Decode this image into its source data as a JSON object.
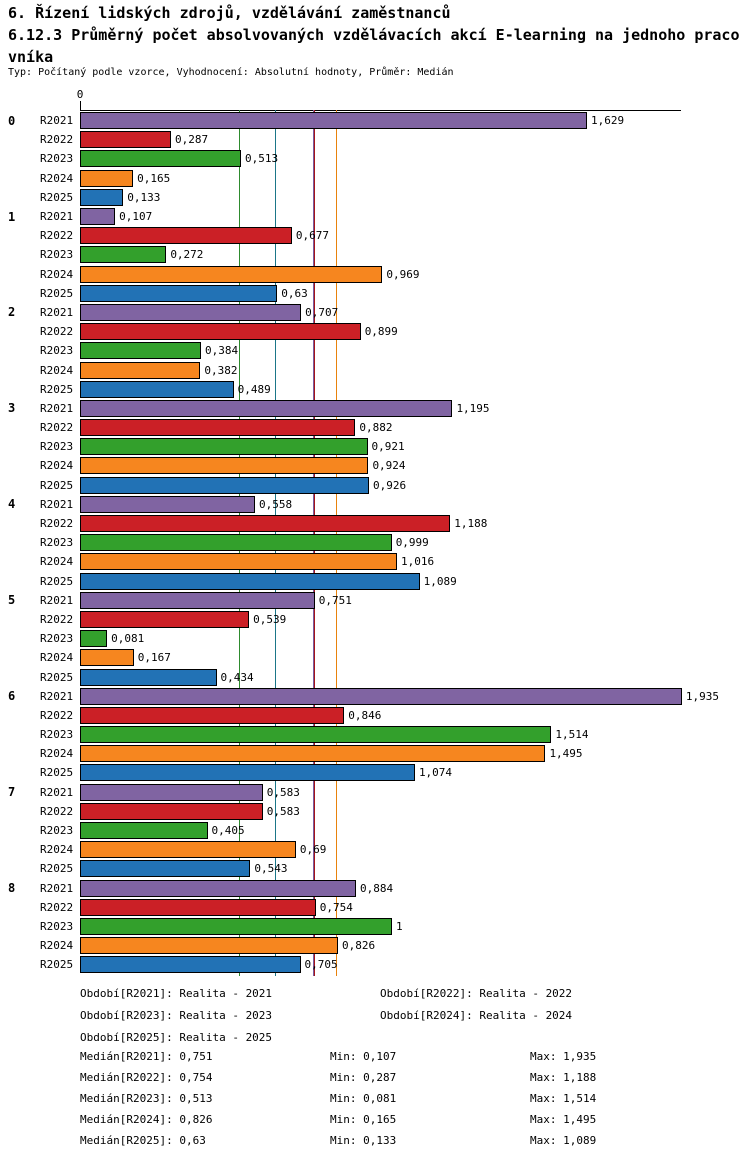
{
  "header": {
    "title_line1": "6. Řízení lidských zdrojů, vzdělávání zaměstnanců",
    "title_line2": "6.12.3 Průměrný počet absolvovaných vzdělávacích akcí E-learning na jednoho praco",
    "title_line3": "vníka",
    "subtitle": "Typ: Počítaný podle vzorce, Vyhodnocení: Absolutní hodnoty, Průměr: Medián"
  },
  "chart_data": {
    "type": "bar",
    "orientation": "horizontal",
    "axis_zero_label": "0",
    "xlim": [
      0,
      1.935
    ],
    "grid": false,
    "groups": [
      "0",
      "1",
      "2",
      "3",
      "4",
      "5",
      "6",
      "7",
      "8"
    ],
    "series": [
      {
        "name": "R2021",
        "color": "#8064A2",
        "median_line_color": "#7A5C9E",
        "values": [
          1.629,
          0.107,
          0.707,
          1.195,
          0.558,
          0.751,
          1.935,
          0.583,
          0.884
        ],
        "value_labels": [
          "1,629",
          "0,107",
          "0,707",
          "1,195",
          "0,558",
          "0,751",
          "1,935",
          "0,583",
          "0,884"
        ],
        "median": 0.751,
        "median_label": "0,751",
        "min_label": "0,107",
        "max_label": "1,935"
      },
      {
        "name": "R2022",
        "color": "#CB2026",
        "median_line_color": "#A4161A",
        "values": [
          0.287,
          0.677,
          0.899,
          0.882,
          1.188,
          0.539,
          0.846,
          0.583,
          0.754
        ],
        "value_labels": [
          "0,287",
          "0,677",
          "0,899",
          "0,882",
          "1,188",
          "0,539",
          "0,846",
          "0,583",
          "0,754"
        ],
        "median": 0.754,
        "median_label": "0,754",
        "min_label": "0,287",
        "max_label": "1,188"
      },
      {
        "name": "R2023",
        "color": "#33A02C",
        "median_line_color": "#2E8B2E",
        "values": [
          0.513,
          0.272,
          0.384,
          0.921,
          0.999,
          0.081,
          1.514,
          0.405,
          1.0
        ],
        "value_labels": [
          "0,513",
          "0,272",
          "0,384",
          "0,921",
          "0,999",
          "0,081",
          "1,514",
          "0,405",
          "1"
        ],
        "median": 0.513,
        "median_label": "0,513",
        "min_label": "0,081",
        "max_label": "1,514"
      },
      {
        "name": "R2024",
        "color": "#F6861F",
        "median_line_color": "#E8820C",
        "values": [
          0.165,
          0.969,
          0.382,
          0.924,
          1.016,
          0.167,
          1.495,
          0.69,
          0.826
        ],
        "value_labels": [
          "0,165",
          "0,969",
          "0,382",
          "0,924",
          "1,016",
          "0,167",
          "1,495",
          "0,69",
          "0,826"
        ],
        "median": 0.826,
        "median_label": "0,826",
        "min_label": "0,165",
        "max_label": "1,495"
      },
      {
        "name": "R2025",
        "color": "#2272B5",
        "median_line_color": "#1B7688",
        "values": [
          0.133,
          0.63,
          0.489,
          0.926,
          1.089,
          0.434,
          1.074,
          0.543,
          0.705
        ],
        "value_labels": [
          "0,133",
          "0,63",
          "0,489",
          "0,926",
          "1,089",
          "0,434",
          "1,074",
          "0,543",
          "0,705"
        ],
        "median": 0.63,
        "median_label": "0,63",
        "min_label": "0,133",
        "max_label": "1,089"
      }
    ]
  },
  "legend": {
    "items": [
      {
        "label": "Období[R2021]: Realita - 2021"
      },
      {
        "label": "Období[R2022]: Realita - 2022"
      },
      {
        "label": "Období[R2023]: Realita - 2023"
      },
      {
        "label": "Období[R2024]: Realita - 2024"
      },
      {
        "label": "Období[R2025]: Realita - 2025"
      }
    ]
  },
  "stats": {
    "rows": [
      {
        "median": "Medián[R2021]: 0,751",
        "min": "Min: 0,107",
        "max": "Max: 1,935"
      },
      {
        "median": "Medián[R2022]: 0,754",
        "min": "Min: 0,287",
        "max": "Max: 1,188"
      },
      {
        "median": "Medián[R2023]: 0,513",
        "min": "Min: 0,081",
        "max": "Max: 1,514"
      },
      {
        "median": "Medián[R2024]: 0,826",
        "min": "Min: 0,165",
        "max": "Max: 1,495"
      },
      {
        "median": "Medián[R2025]: 0,63",
        "min": "Min: 0,133",
        "max": "Max: 1,089"
      }
    ]
  }
}
